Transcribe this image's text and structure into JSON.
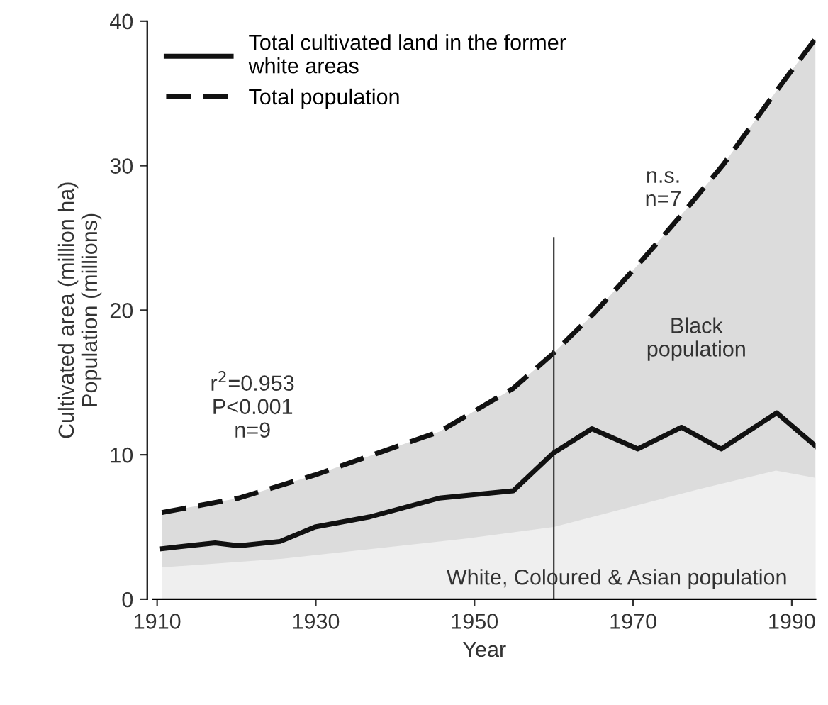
{
  "chart_data": {
    "type": "line",
    "xlabel": "Year",
    "ylabel": "Cultivated area (million ha)\nPopulation (millions)",
    "xlim": [
      1909.5,
      1993
    ],
    "ylim": [
      0,
      40
    ],
    "xticks": [
      1910,
      1930,
      1950,
      1970,
      1990
    ],
    "yticks": [
      0,
      10,
      20,
      30,
      40
    ],
    "grid": false,
    "legend": "top left",
    "series": [
      {
        "type": "area",
        "name": "Total population",
        "color": "#dcdcdc",
        "line_style": "dashed",
        "x": [
          1910.6,
          1920.3,
          1929.9,
          1945.6,
          1954.9,
          1959.9,
          1965.1,
          1971.2,
          1976.1,
          1981.4,
          1988.1,
          1993
        ],
        "values": [
          6.0,
          7.0,
          8.6,
          11.6,
          14.6,
          17.0,
          19.8,
          23.5,
          26.6,
          30.1,
          35.2,
          38.8
        ]
      },
      {
        "type": "area",
        "name": "White, Coloured & Asian population",
        "color": "#efefef",
        "x": [
          1910.6,
          1925.8,
          1949,
          1960,
          1978.2,
          1988,
          1993
        ],
        "values": [
          2.2,
          2.8,
          4.2,
          5.0,
          7.6,
          8.9,
          8.4
        ]
      },
      {
        "color": "#333333",
        "x": [
          1960,
          1960
        ],
        "values": [
          0,
          25
        ]
      },
      {
        "name": "Total cultivated land in the former\nwhite areas",
        "color": "#111111",
        "line_style": "solid",
        "x": [
          1910.6,
          1917.3,
          1920.3,
          1925.5,
          1929.9,
          1936.8,
          1945.6,
          1954.9,
          1959.9,
          1964.8,
          1970.6,
          1976.1,
          1981.1,
          1988.1,
          1993
        ],
        "values": [
          3.5,
          3.9,
          3.7,
          4.0,
          5.0,
          5.7,
          7.0,
          7.5,
          10.1,
          11.8,
          10.4,
          11.9,
          10.4,
          12.9,
          10.6
        ]
      }
    ],
    "annotations": [
      "r$^{2}$=0.953\nP<0.001\nn=9",
      "n.s.\nn=7",
      "Black\npopulation"
    ]
  }
}
